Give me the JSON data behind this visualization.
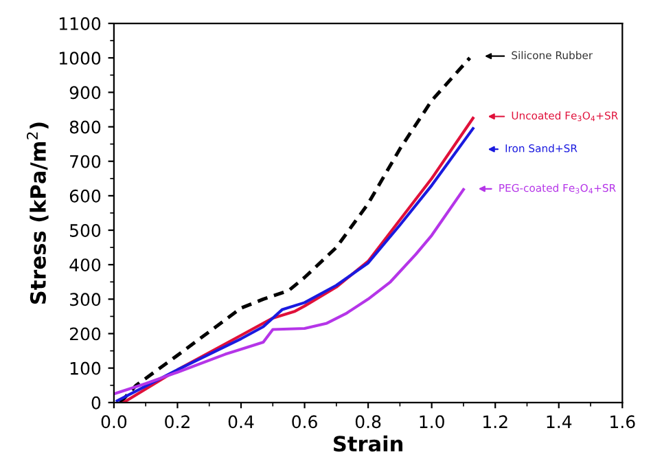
{
  "chart_data": {
    "type": "line",
    "xlabel": "Strain",
    "ylabel": "Stress (kPa/m$^{2}$)",
    "xlim": [
      0,
      1.6
    ],
    "xticks": [
      {
        "value": 0,
        "label": "0.0"
      },
      {
        "value": 0.2,
        "label": "0.2"
      },
      {
        "value": 0.4,
        "label": "0.4"
      },
      {
        "value": 0.6,
        "label": "0.6"
      },
      {
        "value": 0.8,
        "label": "0.8"
      },
      {
        "value": 1.0,
        "label": "1.0"
      },
      {
        "value": 1.2,
        "label": "1.2"
      },
      {
        "value": 1.4,
        "label": "1.4"
      },
      {
        "value": 1.6,
        "label": "1.6"
      }
    ],
    "ylim": [
      0,
      1100
    ],
    "yticks": [
      0,
      100,
      200,
      300,
      400,
      500,
      600,
      700,
      800,
      900,
      1000,
      1100
    ],
    "grid": false,
    "legend": "right",
    "series": [
      {
        "name": "Silicone Rubber",
        "color": "#000000",
        "line_style": "dashed",
        "x": [
          0.02,
          0.07,
          0.2,
          0.4,
          0.47,
          0.55,
          0.6,
          0.7,
          0.8,
          0.9,
          1.0,
          1.12
        ],
        "values": [
          0,
          50,
          137,
          274,
          300,
          325,
          363,
          450,
          577,
          736,
          876,
          1000
        ]
      },
      {
        "name": "Uncoated Fe$_{3}$O$_{4}$+SR",
        "color": "#e0103a",
        "line_style": "solid",
        "x": [
          0.03,
          0.2,
          0.4,
          0.5,
          0.57,
          0.6,
          0.7,
          0.8,
          0.9,
          1.0,
          1.13
        ],
        "values": [
          0,
          95,
          195,
          245,
          265,
          280,
          335,
          410,
          530,
          650,
          825
        ]
      },
      {
        "name": "Iron Sand+SR",
        "color": "#1a1adf",
        "line_style": "solid",
        "x": [
          0.01,
          0.2,
          0.4,
          0.47,
          0.53,
          0.6,
          0.7,
          0.8,
          0.9,
          1.0,
          1.13
        ],
        "values": [
          5,
          95,
          185,
          220,
          270,
          290,
          340,
          405,
          515,
          630,
          795
        ]
      },
      {
        "name": "PEG-coated Fe$_{3}$O$_{4}$+SR",
        "color": "#b535e8",
        "line_style": "solid",
        "x": [
          0,
          0.1,
          0.2,
          0.35,
          0.47,
          0.5,
          0.6,
          0.67,
          0.73,
          0.8,
          0.87,
          0.95,
          1.0,
          1.1
        ],
        "values": [
          25,
          55,
          88,
          140,
          175,
          212,
          215,
          230,
          258,
          300,
          350,
          430,
          485,
          618
        ]
      }
    ]
  }
}
